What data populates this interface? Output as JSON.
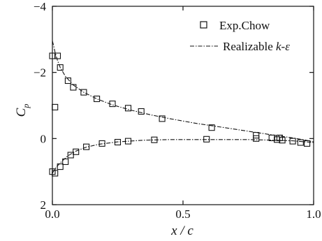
{
  "chart_data": {
    "type": "scatter",
    "xlabel": "x / c",
    "ylabel_main": "C",
    "ylabel_sub": "p",
    "xlim": [
      0,
      1
    ],
    "ylim": [
      2,
      -4
    ],
    "y_inverted": true,
    "x_ticks": [
      {
        "value": 0,
        "label": "0.0"
      },
      {
        "value": 0.5,
        "label": "0.5"
      },
      {
        "value": 1,
        "label": "1.0"
      }
    ],
    "y_ticks": [
      {
        "value": -4,
        "label": "−4"
      },
      {
        "value": -2,
        "label": "−2"
      },
      {
        "value": 0,
        "label": "0"
      },
      {
        "value": 2,
        "label": "2"
      }
    ],
    "legend_position": "top-right",
    "legend": {
      "exp_label": "Exp.Chow",
      "model_label_main": "Realizable ",
      "model_label_italic": "k-ε"
    },
    "series": [
      {
        "name": "Exp.Chow",
        "kind": "markers",
        "marker": "open-square",
        "points": [
          [
            0.0,
            -2.5
          ],
          [
            0.01,
            -0.95
          ],
          [
            0.02,
            -2.5
          ],
          [
            0.03,
            -2.15
          ],
          [
            0.06,
            -1.75
          ],
          [
            0.08,
            -1.55
          ],
          [
            0.12,
            -1.4
          ],
          [
            0.17,
            -1.2
          ],
          [
            0.23,
            -1.05
          ],
          [
            0.29,
            -0.92
          ],
          [
            0.34,
            -0.82
          ],
          [
            0.42,
            -0.6
          ],
          [
            0.61,
            -0.33
          ],
          [
            0.78,
            -0.1
          ],
          [
            0.84,
            -0.02
          ],
          [
            0.87,
            -0.02
          ],
          [
            0.92,
            0.08
          ],
          [
            0.95,
            0.12
          ],
          [
            0.975,
            0.15
          ],
          [
            0.0,
            1.0
          ],
          [
            0.01,
            1.05
          ],
          [
            0.03,
            0.85
          ],
          [
            0.05,
            0.7
          ],
          [
            0.07,
            0.5
          ],
          [
            0.09,
            0.4
          ],
          [
            0.13,
            0.25
          ],
          [
            0.19,
            0.15
          ],
          [
            0.25,
            0.11
          ],
          [
            0.29,
            0.08
          ],
          [
            0.39,
            0.04
          ],
          [
            0.59,
            0.02
          ],
          [
            0.78,
            0.0
          ],
          [
            0.86,
            0.03
          ],
          [
            0.88,
            0.05
          ]
        ]
      },
      {
        "name": "Realizable k-ε",
        "kind": "line",
        "style": "dash-dot",
        "upper": [
          [
            0.0,
            -2.95
          ],
          [
            0.005,
            -2.8
          ],
          [
            0.01,
            -2.62
          ],
          [
            0.02,
            -2.35
          ],
          [
            0.03,
            -2.15
          ],
          [
            0.05,
            -1.88
          ],
          [
            0.08,
            -1.62
          ],
          [
            0.12,
            -1.4
          ],
          [
            0.17,
            -1.2
          ],
          [
            0.23,
            -1.02
          ],
          [
            0.3,
            -0.86
          ],
          [
            0.38,
            -0.71
          ],
          [
            0.45,
            -0.6
          ],
          [
            0.55,
            -0.46
          ],
          [
            0.65,
            -0.34
          ],
          [
            0.75,
            -0.22
          ],
          [
            0.85,
            -0.1
          ],
          [
            0.92,
            -0.02
          ],
          [
            0.97,
            0.05
          ],
          [
            1.0,
            0.1
          ]
        ],
        "lower": [
          [
            0.0,
            1.05
          ],
          [
            0.01,
            0.92
          ],
          [
            0.02,
            0.82
          ],
          [
            0.04,
            0.66
          ],
          [
            0.06,
            0.52
          ],
          [
            0.09,
            0.38
          ],
          [
            0.13,
            0.26
          ],
          [
            0.18,
            0.17
          ],
          [
            0.25,
            0.1
          ],
          [
            0.35,
            0.05
          ],
          [
            0.45,
            0.03
          ],
          [
            0.6,
            0.03
          ],
          [
            0.75,
            0.03
          ],
          [
            0.85,
            0.05
          ],
          [
            0.92,
            0.07
          ],
          [
            0.97,
            0.1
          ],
          [
            1.0,
            0.12
          ]
        ]
      }
    ]
  }
}
